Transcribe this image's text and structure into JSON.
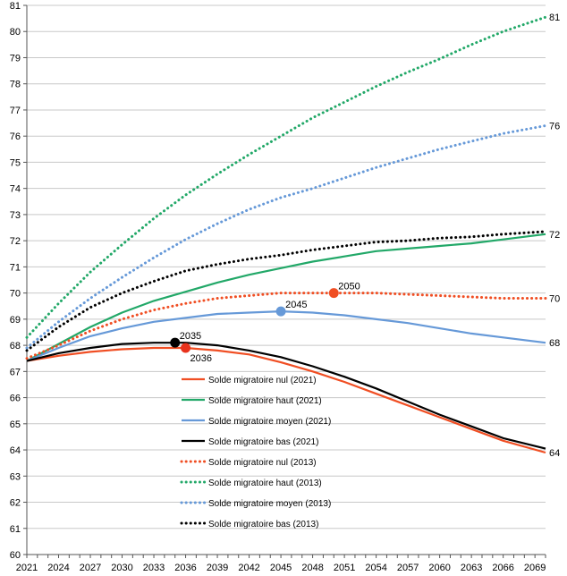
{
  "chart_data": {
    "type": "line",
    "title": "",
    "xlabel": "",
    "ylabel": "",
    "xlim": [
      2021,
      2070
    ],
    "ylim": [
      60,
      81
    ],
    "y_ticks": [
      "60",
      "61",
      "62",
      "63",
      "64",
      "65",
      "66",
      "67",
      "68",
      "69",
      "70",
      "71",
      "72",
      "73",
      "74",
      "75",
      "76",
      "77",
      "78",
      "79",
      "80",
      "81"
    ],
    "x_ticks": [
      "2021",
      "2024",
      "2027",
      "2030",
      "2033",
      "2036",
      "2039",
      "2042",
      "2045",
      "2048",
      "2051",
      "2054",
      "2057",
      "2060",
      "2063",
      "2066",
      "2069"
    ],
    "grid": "horizontal",
    "legend_position": "center-left",
    "series": [
      {
        "name": "Solde migratoire nul (2021)",
        "color": "#f04e23",
        "style": "solid",
        "points": [
          [
            2021,
            67.4
          ],
          [
            2024,
            67.6
          ],
          [
            2027,
            67.75
          ],
          [
            2030,
            67.85
          ],
          [
            2033,
            67.9
          ],
          [
            2036,
            67.9
          ],
          [
            2039,
            67.8
          ],
          [
            2042,
            67.65
          ],
          [
            2045,
            67.35
          ],
          [
            2048,
            67.0
          ],
          [
            2051,
            66.6
          ],
          [
            2054,
            66.15
          ],
          [
            2057,
            65.7
          ],
          [
            2060,
            65.25
          ],
          [
            2063,
            64.8
          ],
          [
            2066,
            64.35
          ],
          [
            2070,
            63.9
          ]
        ],
        "end_label": "64"
      },
      {
        "name": "Solde migratoire haut (2021)",
        "color": "#22a868",
        "style": "solid",
        "points": [
          [
            2021,
            67.4
          ],
          [
            2024,
            68.05
          ],
          [
            2027,
            68.7
          ],
          [
            2030,
            69.25
          ],
          [
            2033,
            69.7
          ],
          [
            2036,
            70.05
          ],
          [
            2039,
            70.4
          ],
          [
            2042,
            70.7
          ],
          [
            2045,
            70.95
          ],
          [
            2048,
            71.2
          ],
          [
            2051,
            71.4
          ],
          [
            2054,
            71.6
          ],
          [
            2057,
            71.7
          ],
          [
            2060,
            71.8
          ],
          [
            2063,
            71.9
          ],
          [
            2066,
            72.05
          ],
          [
            2070,
            72.25
          ]
        ],
        "end_label": "72"
      },
      {
        "name": "Solde migratoire moyen (2021)",
        "color": "#6699d8",
        "style": "solid",
        "points": [
          [
            2021,
            67.4
          ],
          [
            2024,
            67.9
          ],
          [
            2027,
            68.35
          ],
          [
            2030,
            68.65
          ],
          [
            2033,
            68.9
          ],
          [
            2036,
            69.05
          ],
          [
            2039,
            69.2
          ],
          [
            2042,
            69.25
          ],
          [
            2045,
            69.3
          ],
          [
            2048,
            69.25
          ],
          [
            2051,
            69.15
          ],
          [
            2054,
            69.0
          ],
          [
            2057,
            68.85
          ],
          [
            2060,
            68.65
          ],
          [
            2063,
            68.45
          ],
          [
            2066,
            68.3
          ],
          [
            2070,
            68.1
          ]
        ],
        "end_label": "68"
      },
      {
        "name": "Solde migratoire bas (2021)",
        "color": "#000000",
        "style": "solid",
        "points": [
          [
            2021,
            67.4
          ],
          [
            2024,
            67.7
          ],
          [
            2027,
            67.9
          ],
          [
            2030,
            68.05
          ],
          [
            2033,
            68.1
          ],
          [
            2036,
            68.1
          ],
          [
            2039,
            68.0
          ],
          [
            2042,
            67.8
          ],
          [
            2045,
            67.55
          ],
          [
            2048,
            67.2
          ],
          [
            2051,
            66.8
          ],
          [
            2054,
            66.35
          ],
          [
            2057,
            65.85
          ],
          [
            2060,
            65.35
          ],
          [
            2063,
            64.9
          ],
          [
            2066,
            64.45
          ],
          [
            2070,
            64.05
          ]
        ],
        "end_label": ""
      },
      {
        "name": "Solde migratoire nul (2013)",
        "color": "#f04e23",
        "style": "dotted",
        "points": [
          [
            2021,
            67.5
          ],
          [
            2024,
            68.0
          ],
          [
            2027,
            68.55
          ],
          [
            2030,
            69.0
          ],
          [
            2033,
            69.35
          ],
          [
            2036,
            69.6
          ],
          [
            2039,
            69.8
          ],
          [
            2042,
            69.9
          ],
          [
            2045,
            70.0
          ],
          [
            2048,
            70.0
          ],
          [
            2051,
            70.0
          ],
          [
            2054,
            70.0
          ],
          [
            2057,
            69.95
          ],
          [
            2060,
            69.9
          ],
          [
            2063,
            69.85
          ],
          [
            2066,
            69.8
          ],
          [
            2070,
            69.8
          ]
        ],
        "end_label": "70"
      },
      {
        "name": "Solde migratoire haut (2013)",
        "color": "#22a868",
        "style": "dotted",
        "points": [
          [
            2021,
            68.3
          ],
          [
            2024,
            69.6
          ],
          [
            2027,
            70.8
          ],
          [
            2030,
            71.85
          ],
          [
            2033,
            72.85
          ],
          [
            2036,
            73.75
          ],
          [
            2039,
            74.55
          ],
          [
            2042,
            75.3
          ],
          [
            2045,
            76.0
          ],
          [
            2048,
            76.7
          ],
          [
            2051,
            77.3
          ],
          [
            2054,
            77.9
          ],
          [
            2057,
            78.45
          ],
          [
            2060,
            78.95
          ],
          [
            2063,
            79.5
          ],
          [
            2066,
            80.0
          ],
          [
            2070,
            80.55
          ]
        ],
        "end_label": "81"
      },
      {
        "name": "Solde migratoire moyen (2013)",
        "color": "#6699d8",
        "style": "dotted",
        "points": [
          [
            2021,
            67.9
          ],
          [
            2024,
            68.9
          ],
          [
            2027,
            69.8
          ],
          [
            2030,
            70.6
          ],
          [
            2033,
            71.35
          ],
          [
            2036,
            72.05
          ],
          [
            2039,
            72.65
          ],
          [
            2042,
            73.2
          ],
          [
            2045,
            73.65
          ],
          [
            2048,
            74.0
          ],
          [
            2051,
            74.4
          ],
          [
            2054,
            74.8
          ],
          [
            2057,
            75.15
          ],
          [
            2060,
            75.5
          ],
          [
            2063,
            75.8
          ],
          [
            2066,
            76.1
          ],
          [
            2070,
            76.4
          ]
        ],
        "end_label": "76"
      },
      {
        "name": "Solde migratoire bas (2013)",
        "color": "#000000",
        "style": "dotted",
        "points": [
          [
            2021,
            67.8
          ],
          [
            2024,
            68.7
          ],
          [
            2027,
            69.45
          ],
          [
            2030,
            70.0
          ],
          [
            2033,
            70.45
          ],
          [
            2036,
            70.85
          ],
          [
            2039,
            71.1
          ],
          [
            2042,
            71.3
          ],
          [
            2045,
            71.45
          ],
          [
            2048,
            71.65
          ],
          [
            2051,
            71.8
          ],
          [
            2054,
            71.95
          ],
          [
            2057,
            72.0
          ],
          [
            2060,
            72.1
          ],
          [
            2063,
            72.15
          ],
          [
            2066,
            72.25
          ],
          [
            2070,
            72.35
          ]
        ],
        "end_label": ""
      }
    ],
    "markers": [
      {
        "label": "2035",
        "x": 2035,
        "y": 68.1,
        "color": "#000000",
        "label_side": "above"
      },
      {
        "label": "2036",
        "x": 2036,
        "y": 67.9,
        "color": "#e8321c",
        "label_side": "below"
      },
      {
        "label": "2045",
        "x": 2045,
        "y": 69.3,
        "color": "#6699d8",
        "label_side": "above"
      },
      {
        "label": "2050",
        "x": 2050,
        "y": 70.0,
        "color": "#f04e23",
        "label_side": "above"
      }
    ]
  }
}
